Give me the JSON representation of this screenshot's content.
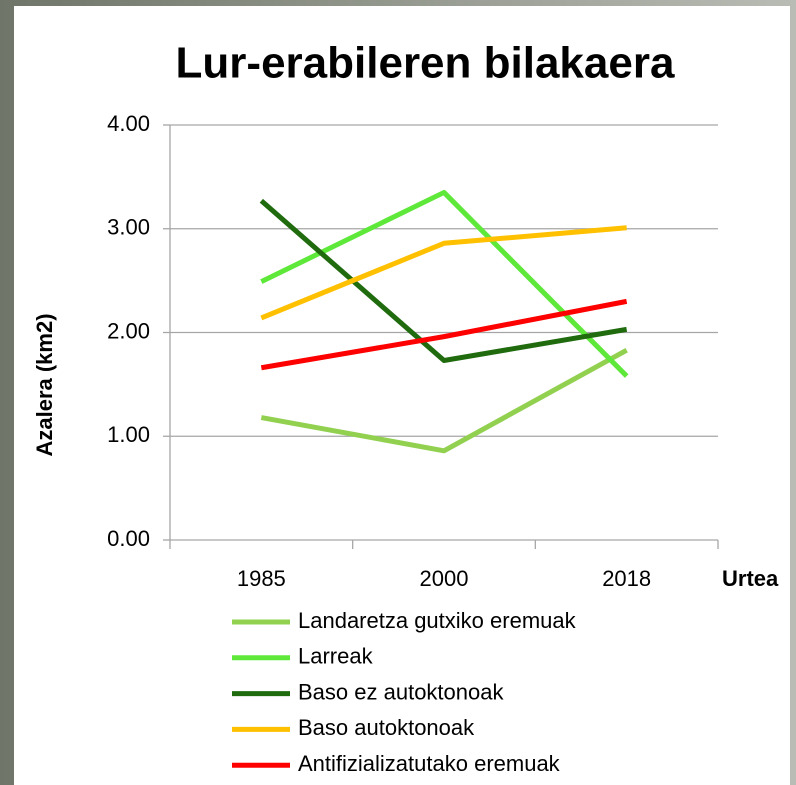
{
  "chart_data": {
    "type": "line",
    "title": "Lur-erabileren bilakaera",
    "x_label": "Urtea",
    "y_label": "Azalera (km2)",
    "categories": [
      "1985",
      "2000",
      "2018"
    ],
    "series": [
      {
        "name": "Landaretza gutxiko eremuak",
        "color": "#92d050",
        "values": [
          1.18,
          0.86,
          1.83
        ]
      },
      {
        "name": "Larreak",
        "color": "#5ee83a",
        "values": [
          2.49,
          3.35,
          1.58
        ]
      },
      {
        "name": "Baso ez autoktonoak",
        "color": "#1f6b0e",
        "values": [
          3.27,
          1.73,
          2.03
        ]
      },
      {
        "name": "Baso autoktonoak",
        "color": "#ffc000",
        "values": [
          2.14,
          2.86,
          3.01
        ]
      },
      {
        "name": "Antifizializatutako eremuak",
        "color": "#ff0000",
        "values": [
          1.66,
          1.96,
          2.3
        ]
      }
    ],
    "ylim": [
      0,
      4
    ],
    "yticks": [
      {
        "value": 0,
        "label": "0.00"
      },
      {
        "value": 1,
        "label": "1.00"
      },
      {
        "value": 2,
        "label": "2.00"
      },
      {
        "value": 3,
        "label": "3.00"
      },
      {
        "value": 4,
        "label": "4.00"
      }
    ],
    "grid": true,
    "legend": "bottom"
  }
}
